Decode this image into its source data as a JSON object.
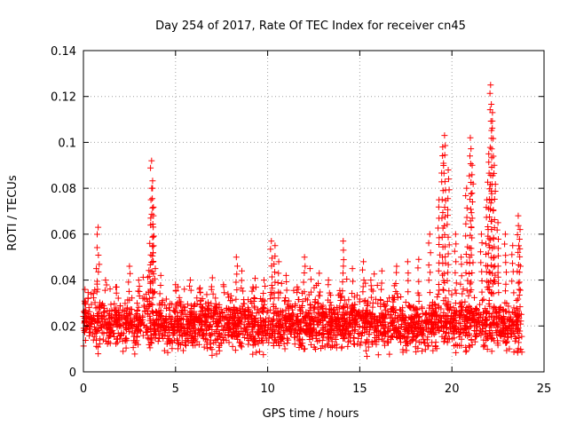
{
  "chart_data": {
    "type": "scatter",
    "title": "Day 254 of 2017, Rate Of TEC Index for receiver cn45",
    "xlabel": "GPS time / hours",
    "ylabel": "ROTI / TECUs",
    "xlim": [
      0,
      25
    ],
    "ylim": [
      0,
      0.14
    ],
    "xticks": [
      0,
      5,
      10,
      15,
      20,
      25
    ],
    "yticks": [
      0,
      0.02,
      0.04,
      0.06,
      0.08,
      0.1,
      0.12,
      0.14
    ],
    "xtick_labels": [
      "0",
      "5",
      "10",
      "15",
      "20",
      "25"
    ],
    "ytick_labels": [
      "0",
      "0.02",
      "0.04",
      "0.06",
      "0.08",
      "0.1",
      "0.12",
      "0.14"
    ],
    "grid": true,
    "marker": "+",
    "series": [
      {
        "name": "ROTI",
        "color": "#ff0000",
        "x": [
          0.05,
          0.3,
          0.7,
          0.8,
          1.2,
          1.8,
          2.5,
          3.0,
          3.6,
          3.7,
          3.75,
          3.8,
          3.9,
          4.2,
          5.0,
          5.8,
          6.3,
          7.0,
          7.6,
          8.3,
          8.6,
          9.2,
          9.8,
          10.2,
          10.4,
          10.6,
          11.0,
          11.6,
          12.0,
          12.3,
          12.8,
          13.3,
          14.1,
          14.6,
          15.2,
          15.6,
          16.2,
          17.0,
          17.6,
          18.2,
          18.8,
          19.3,
          19.5,
          19.6,
          19.8,
          20.2,
          20.5,
          20.8,
          21.0,
          21.1,
          21.6,
          21.9,
          22.0,
          22.1,
          22.2,
          22.3,
          22.5,
          22.9,
          23.3,
          23.6,
          23.7
        ],
        "y": [
          0.018,
          0.028,
          0.045,
          0.063,
          0.04,
          0.037,
          0.046,
          0.04,
          0.056,
          0.092,
          0.08,
          0.068,
          0.045,
          0.042,
          0.038,
          0.04,
          0.036,
          0.041,
          0.038,
          0.05,
          0.044,
          0.037,
          0.04,
          0.057,
          0.055,
          0.048,
          0.042,
          0.037,
          0.05,
          0.045,
          0.043,
          0.04,
          0.057,
          0.045,
          0.048,
          0.04,
          0.044,
          0.046,
          0.048,
          0.049,
          0.06,
          0.075,
          0.098,
          0.103,
          0.088,
          0.06,
          0.05,
          0.08,
          0.102,
          0.09,
          0.06,
          0.075,
          0.095,
          0.125,
          0.113,
          0.09,
          0.065,
          0.06,
          0.055,
          0.068,
          0.062
        ]
      }
    ],
    "background_density": {
      "description": "dense band of ROTI values across the full day",
      "typical_range": [
        0.005,
        0.035
      ],
      "hours": [
        0,
        23.8
      ]
    }
  }
}
